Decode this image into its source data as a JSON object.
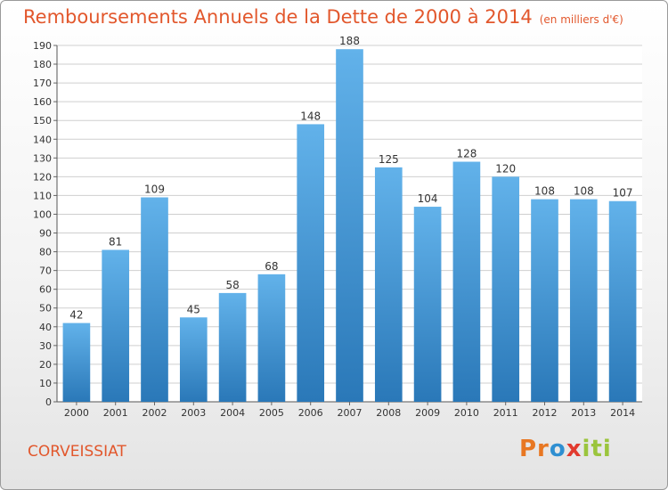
{
  "title": "Remboursements Annuels de la Dette de 2000 à 2014",
  "unit": "(en milliers d'€)",
  "commune": "CORVEISSIAT",
  "logo": "Proxiti",
  "colors": {
    "bar_light": "#62b2ea",
    "bar_dark": "#2a78b8",
    "title": "#e2572c"
  },
  "chart_data": {
    "type": "bar",
    "title": "Remboursements Annuels de la Dette de 2000 à 2014",
    "xlabel": "",
    "ylabel": "",
    "categories": [
      "2000",
      "2001",
      "2002",
      "2003",
      "2004",
      "2005",
      "2006",
      "2007",
      "2008",
      "2009",
      "2010",
      "2011",
      "2012",
      "2013",
      "2014"
    ],
    "values": [
      42,
      81,
      109,
      45,
      58,
      68,
      148,
      188,
      125,
      104,
      128,
      120,
      108,
      108,
      107
    ],
    "ylim": [
      0,
      190
    ],
    "ytick_step": 10,
    "grid": true,
    "data_labels": true
  }
}
